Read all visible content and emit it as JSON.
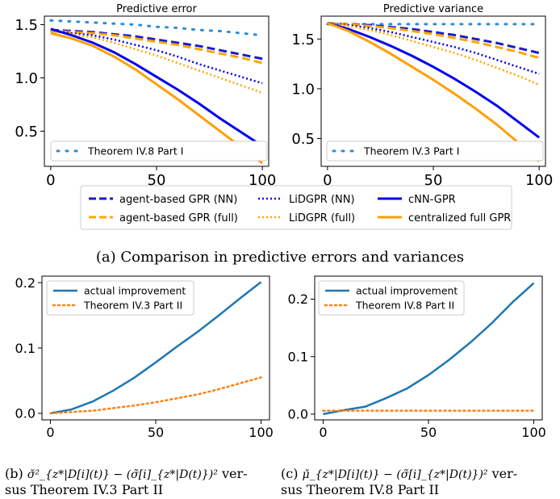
{
  "colors": {
    "blue_dark": "#0000ee",
    "blue_dash": "#1a1acc",
    "orange": "#ff9f00",
    "orange_dash": "#ffa500",
    "steel": "#1f77b4",
    "tab_orange": "#ff7f0e",
    "dotted_blue": "#2a8cd8"
  },
  "captions": {
    "a": "(a) Comparison in predictive errors and variances",
    "b_pre": "(b) ",
    "b_math": "σ̌²_{z*|D[i](t)} − (σ̃[i]_{z*|D(t)})²",
    "b_post": " ver-",
    "b_line2": "sus Theorem IV.3 Part II",
    "c_pre": "(c) ",
    "c_math": "μ̌_{z*|D[i](t)} − (σ̃[i]_{z*|D(t)})²",
    "c_post": " ver-",
    "c_line2": "sus Theorem IV.8 Part II"
  },
  "legend_top": {
    "agent_nn": "agent-based GPR (NN)",
    "agent_full": "agent-based GPR (full)",
    "lidgpr_nn": "LiDGPR (NN)",
    "lidgpr_full": "LiDGPR (full)",
    "cnn": "cNN-GPR",
    "central": "centralized full GPR"
  },
  "chart_data": [
    {
      "id": "predictive_error",
      "type": "line",
      "title": "Predictive error",
      "xlim": [
        -3,
        103
      ],
      "ylim": [
        0.17,
        1.58
      ],
      "xticks": [
        0,
        50,
        100
      ],
      "yticks": [
        0.5,
        1.0,
        1.5
      ],
      "ytick_labels": [
        "0.5",
        "1.0",
        "1.5"
      ],
      "legend": [
        "Theorem IV.8 Part I"
      ],
      "legend_position": "lower-left",
      "x": [
        0,
        10,
        20,
        30,
        40,
        50,
        60,
        70,
        80,
        90,
        100
      ],
      "series": [
        {
          "name": "Theorem IV.8 Part I",
          "style": "theorem",
          "values": [
            1.54,
            1.53,
            1.52,
            1.51,
            1.5,
            1.48,
            1.47,
            1.45,
            1.44,
            1.42,
            1.4
          ]
        },
        {
          "name": "agent-based GPR (NN)",
          "style": "agent_nn",
          "values": [
            1.45,
            1.44,
            1.43,
            1.41,
            1.39,
            1.36,
            1.33,
            1.3,
            1.26,
            1.22,
            1.18
          ]
        },
        {
          "name": "agent-based GPR (full)",
          "style": "agent_full",
          "values": [
            1.44,
            1.43,
            1.42,
            1.4,
            1.37,
            1.34,
            1.31,
            1.27,
            1.23,
            1.19,
            1.14
          ]
        },
        {
          "name": "LiDGPR (NN)",
          "style": "lidgpr_nn",
          "values": [
            1.44,
            1.42,
            1.4,
            1.36,
            1.31,
            1.26,
            1.2,
            1.13,
            1.07,
            1.01,
            0.95
          ]
        },
        {
          "name": "LiDGPR (full)",
          "style": "lidgpr_full",
          "values": [
            1.44,
            1.41,
            1.38,
            1.33,
            1.27,
            1.21,
            1.14,
            1.07,
            1.0,
            0.93,
            0.86
          ]
        },
        {
          "name": "cNN-GPR",
          "style": "cnn",
          "values": [
            1.46,
            1.4,
            1.33,
            1.24,
            1.13,
            1.01,
            0.89,
            0.76,
            0.62,
            0.49,
            0.36
          ]
        },
        {
          "name": "centralized full GPR",
          "style": "central",
          "values": [
            1.42,
            1.37,
            1.3,
            1.2,
            1.08,
            0.94,
            0.8,
            0.65,
            0.5,
            0.35,
            0.2
          ]
        }
      ]
    },
    {
      "id": "predictive_variance",
      "type": "line",
      "title": "Predictive variance",
      "xlim": [
        -3,
        103
      ],
      "ylim": [
        0.22,
        1.73
      ],
      "xticks": [
        0,
        50,
        100
      ],
      "yticks": [
        0.5,
        1.0,
        1.5
      ],
      "ytick_labels": [
        "0.5",
        "1.0",
        "1.5"
      ],
      "legend": [
        "Theorem IV.3 Part I"
      ],
      "legend_position": "lower-left",
      "x": [
        0,
        10,
        20,
        30,
        40,
        50,
        60,
        70,
        80,
        90,
        100
      ],
      "series": [
        {
          "name": "Theorem IV.3 Part I",
          "style": "theorem",
          "values": [
            1.65,
            1.65,
            1.65,
            1.65,
            1.65,
            1.65,
            1.65,
            1.65,
            1.65,
            1.65,
            1.65
          ]
        },
        {
          "name": "agent-based GPR (NN)",
          "style": "agent_nn",
          "values": [
            1.66,
            1.65,
            1.64,
            1.62,
            1.6,
            1.57,
            1.54,
            1.5,
            1.46,
            1.41,
            1.36
          ]
        },
        {
          "name": "agent-based GPR (full)",
          "style": "agent_full",
          "values": [
            1.66,
            1.65,
            1.63,
            1.61,
            1.58,
            1.55,
            1.51,
            1.47,
            1.42,
            1.37,
            1.31
          ]
        },
        {
          "name": "LiDGPR (NN)",
          "style": "lidgpr_nn",
          "values": [
            1.66,
            1.64,
            1.61,
            1.57,
            1.52,
            1.47,
            1.42,
            1.36,
            1.29,
            1.22,
            1.15
          ]
        },
        {
          "name": "LiDGPR (full)",
          "style": "lidgpr_full",
          "values": [
            1.66,
            1.63,
            1.59,
            1.54,
            1.48,
            1.42,
            1.36,
            1.29,
            1.21,
            1.13,
            1.04
          ]
        },
        {
          "name": "cNN-GPR",
          "style": "cnn",
          "values": [
            1.66,
            1.6,
            1.52,
            1.43,
            1.33,
            1.22,
            1.1,
            0.97,
            0.83,
            0.67,
            0.51
          ]
        },
        {
          "name": "centralized full GPR",
          "style": "central",
          "values": [
            1.66,
            1.58,
            1.47,
            1.35,
            1.22,
            1.09,
            0.95,
            0.8,
            0.64,
            0.46,
            0.27
          ]
        }
      ]
    },
    {
      "id": "variance_improvement",
      "type": "line",
      "xlim": [
        -4,
        104
      ],
      "ylim": [
        -0.01,
        0.21
      ],
      "xticks": [
        0,
        50,
        100
      ],
      "yticks": [
        0.0,
        0.1,
        0.2
      ],
      "ytick_labels": [
        "0.0",
        "0.1",
        "0.2"
      ],
      "legend": [
        "actual improvement",
        "Theorem IV.3 Part II"
      ],
      "legend_position": "upper-left",
      "x": [
        0,
        10,
        20,
        30,
        40,
        50,
        60,
        70,
        80,
        90,
        100
      ],
      "series": [
        {
          "name": "actual improvement",
          "style": "actual",
          "values": [
            0.0,
            0.006,
            0.018,
            0.035,
            0.055,
            0.078,
            0.102,
            0.125,
            0.15,
            0.176,
            0.201
          ]
        },
        {
          "name": "Theorem IV.3 Part II",
          "style": "bound",
          "values": [
            0.0,
            0.002,
            0.004,
            0.008,
            0.012,
            0.017,
            0.023,
            0.029,
            0.037,
            0.046,
            0.055
          ]
        }
      ]
    },
    {
      "id": "mean_improvement",
      "type": "line",
      "xlim": [
        -4,
        104
      ],
      "ylim": [
        -0.01,
        0.24
      ],
      "xticks": [
        0,
        50,
        100
      ],
      "yticks": [
        0.0,
        0.1,
        0.2
      ],
      "ytick_labels": [
        "0.0",
        "0.1",
        "0.2"
      ],
      "legend": [
        "actual improvement",
        "Theorem IV.8 Part II"
      ],
      "legend_position": "upper-left",
      "x": [
        0,
        10,
        20,
        30,
        40,
        50,
        60,
        70,
        80,
        90,
        100
      ],
      "series": [
        {
          "name": "actual improvement",
          "style": "actual",
          "values": [
            0.0,
            0.007,
            0.013,
            0.028,
            0.045,
            0.068,
            0.095,
            0.125,
            0.158,
            0.195,
            0.228
          ]
        },
        {
          "name": "Theorem IV.8 Part II",
          "style": "bound",
          "values": [
            0.006,
            0.006,
            0.006,
            0.006,
            0.006,
            0.006,
            0.006,
            0.006,
            0.006,
            0.006,
            0.006
          ]
        }
      ]
    }
  ]
}
